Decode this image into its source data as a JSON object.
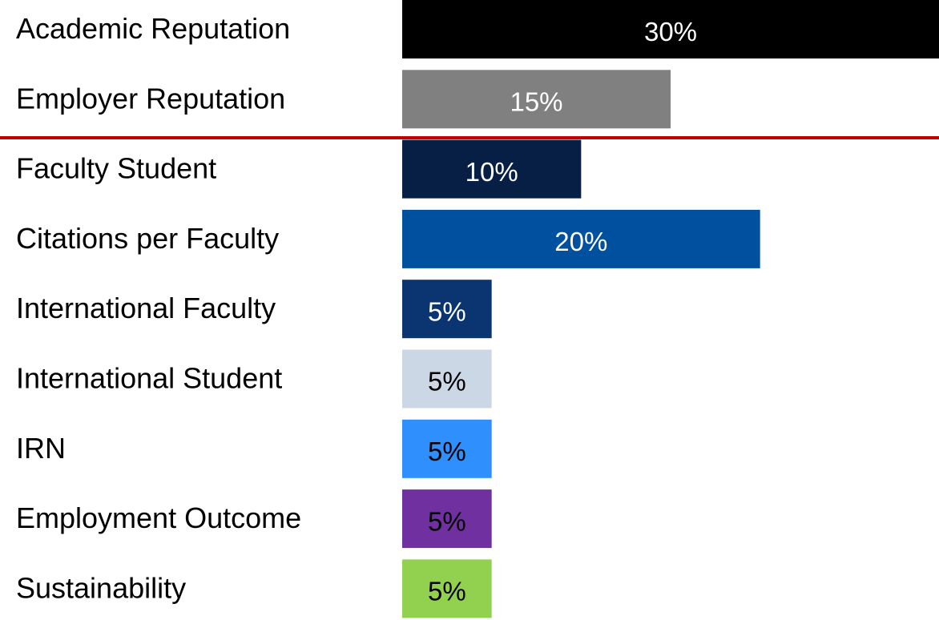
{
  "chart_data": {
    "type": "bar",
    "categories": [
      "Academic Reputation",
      "Employer Reputation",
      "Faculty Student",
      "Citations per Faculty",
      "International Faculty",
      "International Student",
      "IRN",
      "Employment Outcome",
      "Sustainability"
    ],
    "values": [
      30,
      15,
      10,
      20,
      5,
      5,
      5,
      5,
      5
    ],
    "value_labels": [
      "30%",
      "15%",
      "10%",
      "20%",
      "5%",
      "5%",
      "5%",
      "5%",
      "5%"
    ],
    "colors": [
      "#000000",
      "#808080",
      "#071f45",
      "#0050a0",
      "#0b3570",
      "#ccd7e6",
      "#2f8ffd",
      "#7030a0",
      "#92d050"
    ],
    "value_label_colors": [
      "#ffffff",
      "#ffffff",
      "#ffffff",
      "#ffffff",
      "#ffffff",
      "#000000",
      "#000000",
      "#000000",
      "#000000"
    ]
  }
}
